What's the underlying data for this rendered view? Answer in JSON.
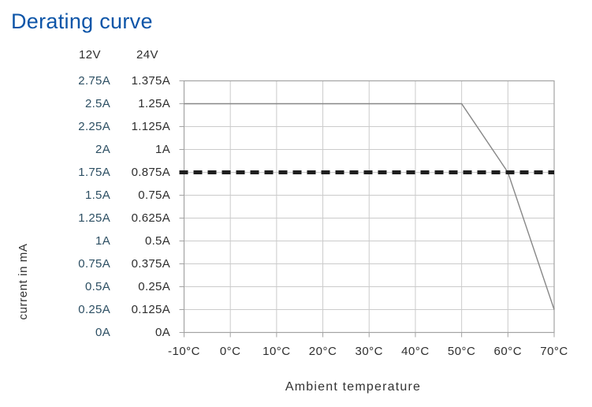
{
  "chart_data": {
    "type": "line",
    "title": "Derating curve",
    "xlabel": "Ambient temperature",
    "ylabel": "current in mA",
    "xlim": [
      -10,
      70
    ],
    "ylim_12v": [
      0,
      2.75
    ],
    "ylim_24v": [
      0,
      1.375
    ],
    "x_tick_values": [
      -10,
      0,
      10,
      20,
      30,
      40,
      50,
      60,
      70
    ],
    "x_ticks": [
      "-10°C",
      "0°C",
      "10°C",
      "20°C",
      "30°C",
      "40°C",
      "50°C",
      "60°C",
      "70°C"
    ],
    "y_axis_columns": [
      {
        "header": "12V",
        "labels": [
          "2.75A",
          "2.5A",
          "2.25A",
          "2A",
          "1.75A",
          "1.5A",
          "1.25A",
          "1A",
          "0.75A",
          "0.5A",
          "0.25A",
          "0A"
        ]
      },
      {
        "header": "24V",
        "labels": [
          "1.375A",
          "1.25A",
          "1.125A",
          "1A",
          "0.875A",
          "0.75A",
          "0.625A",
          "0.5A",
          "0.375A",
          "0.25A",
          "0.125A",
          "0A"
        ]
      }
    ],
    "grid": {
      "on": true,
      "x_step": 10,
      "y_step_12v": 0.25,
      "color": "#cbcbcb"
    },
    "series": [
      {
        "name": "derating-curve-line",
        "line_style": "solid",
        "color": "#878787",
        "width": 1.4,
        "points": [
          {
            "x": -10,
            "y12": 2.5,
            "y24": 1.25
          },
          {
            "x": 50,
            "y12": 2.5,
            "y24": 1.25
          },
          {
            "x": 60,
            "y12": 1.75,
            "y24": 0.875
          },
          {
            "x": 70,
            "y12": 0.25,
            "y24": 0.125
          }
        ]
      },
      {
        "name": "dashed-reference-line",
        "line_style": "dashed",
        "color": "#1f1f1f",
        "width": 5,
        "dash": "11 7",
        "points": [
          {
            "x": -10,
            "y12": 1.75,
            "y24": 0.875
          },
          {
            "x": 70,
            "y12": 1.75,
            "y24": 0.875
          }
        ]
      }
    ],
    "colors": {
      "title": "#0d55a8",
      "labels_12v": "#2d4f63",
      "labels_24v": "#2e2e2e",
      "frame": "#a3a3a3",
      "grid": "#cbcbcb"
    }
  }
}
